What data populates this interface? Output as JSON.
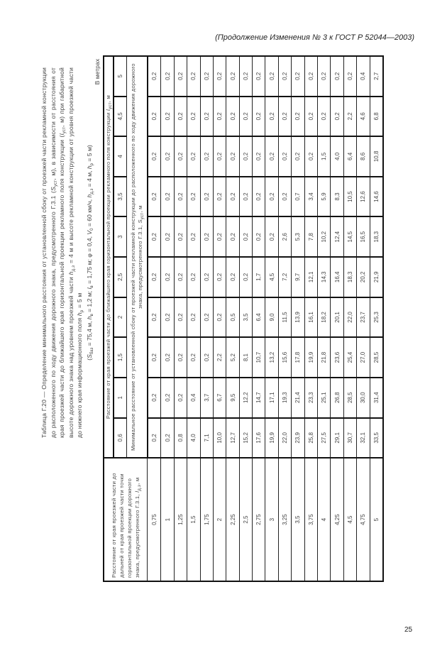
{
  "header": "(Продолжение Изменения № 3 к ГОСТ Р 52044—2003)",
  "page_number": "25",
  "title": [
    {
      "t": "Таблица Г.20 — Определение минимального расстояния от установленной сбоку от проезжей части рекламной конструкции до расположенного по ходу движения дорожного знака, предусмотренного Г.3.1 ("
    },
    {
      "t": "S",
      "i": true
    },
    {
      "t": "уст",
      "sub": true
    },
    {
      "t": ", м), в зависимости от расстояния от края проезжей части до ближайшего края горизонтальной проекции рекламного поля конструкции ("
    },
    {
      "t": "l",
      "i": true
    },
    {
      "t": "уст",
      "sub": true
    },
    {
      "t": ", м) при габаритной высоте дорожного знака над уровнем проезжей части "
    },
    {
      "t": "h",
      "i": true
    },
    {
      "t": "д.з",
      "sub": true
    },
    {
      "t": " = 4 м и высоте рекламной конструкции от уровня проезжей части до нижнего края информационного поля "
    },
    {
      "t": "h",
      "i": true
    },
    {
      "t": "р",
      "sub": true
    },
    {
      "t": " = 5 м"
    }
  ],
  "params": [
    {
      "t": "("
    },
    {
      "t": "S",
      "i": true
    },
    {
      "t": "баз",
      "sub": true
    },
    {
      "t": " = 75,4 м, "
    },
    {
      "t": "h",
      "i": true
    },
    {
      "t": "в",
      "sub": true
    },
    {
      "t": " = 1,2 м; "
    },
    {
      "t": "l",
      "i": true
    },
    {
      "t": "в",
      "sub": true
    },
    {
      "t": " = 1,75 м; φ = 0,4, "
    },
    {
      "t": "V",
      "i": true
    },
    {
      "t": "0",
      "sub": true
    },
    {
      "t": " = 60 км/ч, "
    },
    {
      "t": "h",
      "i": true
    },
    {
      "t": "д.з",
      "sub": true
    },
    {
      "t": " = 4 м, "
    },
    {
      "t": "h",
      "i": true
    },
    {
      "t": "р",
      "sub": true
    },
    {
      "t": " = 5 м)"
    }
  ],
  "units": "В метрах",
  "table": {
    "row_header": [
      {
        "t": "Расстояние от края проезжей части до дальней от края проезжей части точки горизонтальной проекции дорожного знака, предусмотренного Г.3.1, "
      },
      {
        "t": "l",
        "i": true
      },
      {
        "t": "д.з",
        "sub": true
      },
      {
        "t": ", м"
      }
    ],
    "col_group_header": [
      {
        "t": "Расстояние от края проезжей части до ближайшего края горизонтальной проекции рекламного поля конструкции "
      },
      {
        "t": "l",
        "i": true
      },
      {
        "t": "уст",
        "sub": true
      },
      {
        "t": ", м"
      }
    ],
    "value_header": [
      {
        "t": "Минимальное расстояние от установленной сбоку от проезжей части рекламной конструкции до расположенного по ходу движения дорожного знака, предусмотренного Г.3.1, "
      },
      {
        "t": "S",
        "i": true
      },
      {
        "t": "уст",
        "sub": true
      },
      {
        "t": ", м"
      }
    ],
    "columns": [
      "0,6",
      "1",
      "1,5",
      "2",
      "2,5",
      "3",
      "3,5",
      "4",
      "4,5",
      "5"
    ],
    "rows": [
      {
        "label": "0,75",
        "values": [
          "0,2",
          "0,2",
          "0,2",
          "0,2",
          "0,2",
          "0,2",
          "0,2",
          "0,2",
          "0,2",
          "0,2"
        ]
      },
      {
        "label": "1",
        "values": [
          "0,2",
          "0,2",
          "0,2",
          "0,2",
          "0,2",
          "0,2",
          "0,2",
          "0,2",
          "0,2",
          "0,2"
        ]
      },
      {
        "label": "1,25",
        "values": [
          "0,8",
          "0,2",
          "0,2",
          "0,2",
          "0,2",
          "0,2",
          "0,2",
          "0,2",
          "0,2",
          "0,2"
        ]
      },
      {
        "label": "1,5",
        "values": [
          "4,0",
          "0,4",
          "0,2",
          "0,2",
          "0,2",
          "0,2",
          "0,2",
          "0,2",
          "0,2",
          "0,2"
        ]
      },
      {
        "label": "1,75",
        "values": [
          "7,1",
          "3,7",
          "0,2",
          "0,2",
          "0,2",
          "0,2",
          "0,2",
          "0,2",
          "0,2",
          "0,2"
        ]
      },
      {
        "label": "2",
        "values": [
          "10,0",
          "6,7",
          "2,2",
          "0,2",
          "0,2",
          "0,2",
          "0,2",
          "0,2",
          "0,2",
          "0,2"
        ]
      },
      {
        "label": "2,25",
        "values": [
          "12,7",
          "9,5",
          "5,2",
          "0,5",
          "0,2",
          "0,2",
          "0,2",
          "0,2",
          "0,2",
          "0,2"
        ]
      },
      {
        "label": "2,5",
        "values": [
          "15,2",
          "12,2",
          "8,1",
          "3,5",
          "0,2",
          "0,2",
          "0,2",
          "0,2",
          "0,2",
          "0,2"
        ]
      },
      {
        "label": "2,75",
        "values": [
          "17,6",
          "14,7",
          "10,7",
          "6,4",
          "1,7",
          "0,2",
          "0,2",
          "0,2",
          "0,2",
          "0,2"
        ]
      },
      {
        "label": "3",
        "values": [
          "19,9",
          "17,1",
          "13,2",
          "9,0",
          "4,5",
          "0,2",
          "0,2",
          "0,2",
          "0,2",
          "0,2"
        ]
      },
      {
        "label": "3,25",
        "values": [
          "22,0",
          "19,3",
          "15,6",
          "11,5",
          "7,2",
          "2,6",
          "0,2",
          "0,2",
          "0,2",
          "0,2"
        ]
      },
      {
        "label": "3,5",
        "values": [
          "23,9",
          "21,4",
          "17,8",
          "13,9",
          "9,7",
          "5,3",
          "0,7",
          "0,2",
          "0,2",
          "0,2"
        ]
      },
      {
        "label": "3,75",
        "values": [
          "25,8",
          "23,3",
          "19,9",
          "16,1",
          "12,1",
          "7,8",
          "3,4",
          "0,2",
          "0,2",
          "0,2"
        ]
      },
      {
        "label": "4",
        "values": [
          "27,5",
          "25,1",
          "21,8",
          "18,2",
          "14,3",
          "10,2",
          "5,9",
          "1,5",
          "0,2",
          "0,2"
        ]
      },
      {
        "label": "4,25",
        "values": [
          "29,1",
          "26,8",
          "23,6",
          "20,1",
          "16,4",
          "12,4",
          "8,3",
          "4,0",
          "0,2",
          "0,2"
        ]
      },
      {
        "label": "4,5",
        "values": [
          "30,7",
          "28,5",
          "25,4",
          "22,0",
          "18,3",
          "14,5",
          "10,5",
          "6,4",
          "2,2",
          "0,2"
        ]
      },
      {
        "label": "4,75",
        "values": [
          "32,1",
          "30,0",
          "27,0",
          "23,7",
          "20,2",
          "16,5",
          "12,6",
          "8,6",
          "4,6",
          "0,4"
        ]
      },
      {
        "label": "5",
        "values": [
          "33,5",
          "31,4",
          "28,5",
          "25,3",
          "21,9",
          "18,3",
          "14,6",
          "10,8",
          "6,8",
          "2,7"
        ]
      }
    ]
  }
}
